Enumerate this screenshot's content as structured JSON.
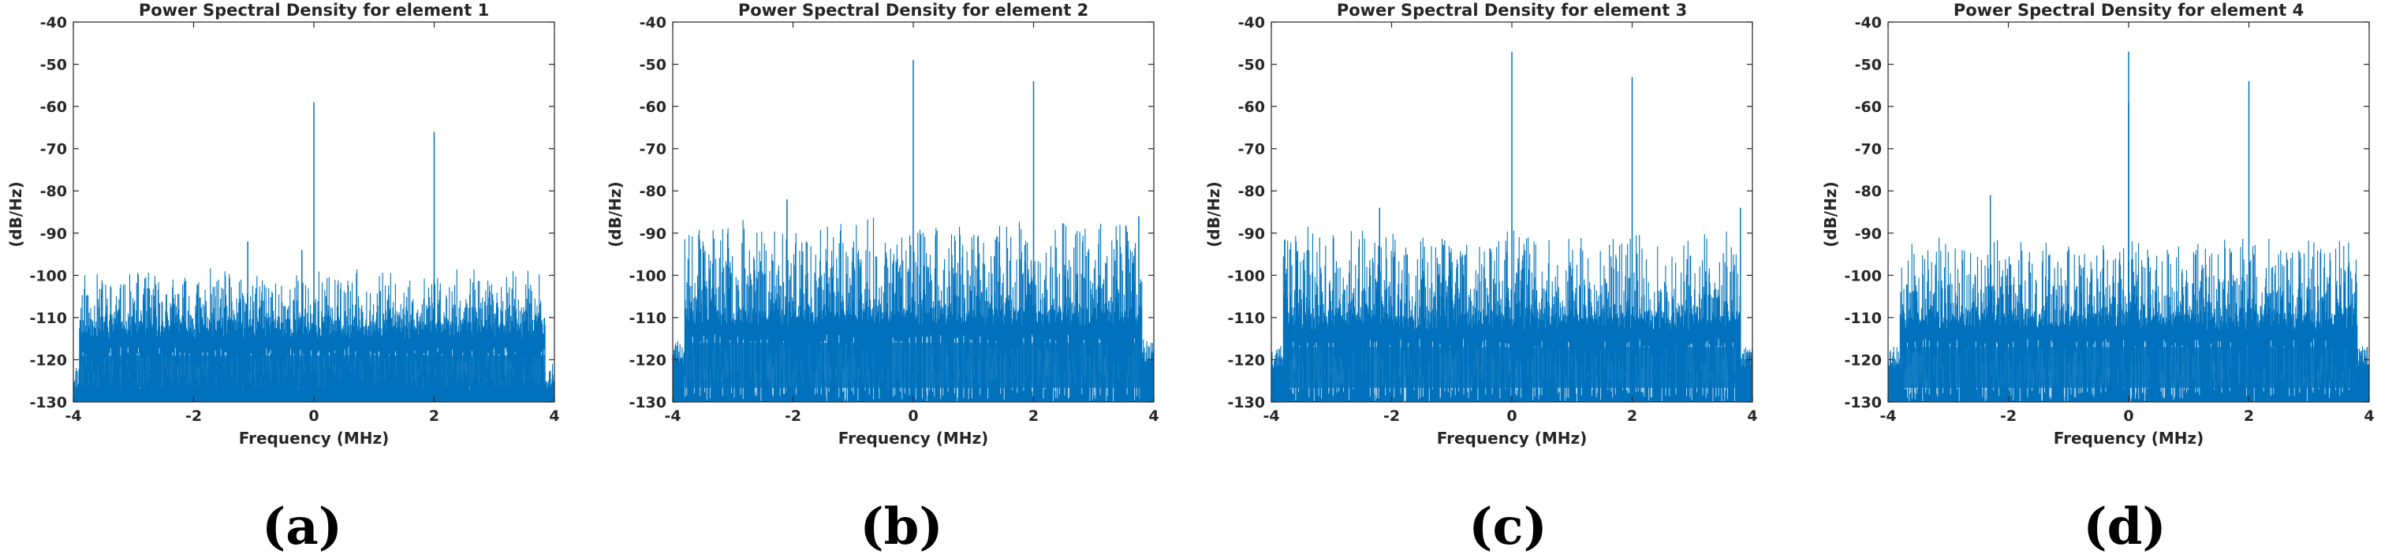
{
  "colors": {
    "trace": "#0072BD",
    "axis": "#262626"
  },
  "panels": [
    {
      "caption": "(a)"
    },
    {
      "caption": "(b)"
    },
    {
      "caption": "(c)"
    },
    {
      "caption": "(d)"
    }
  ],
  "chart_data": [
    {
      "type": "line",
      "title": "Power Spectral Density for element 1",
      "xlabel": "Frequency (MHz)",
      "ylabel": "(dB/Hz)",
      "xlim": [
        -4,
        4
      ],
      "ylim": [
        -130,
        -40
      ],
      "xticks": [
        -4,
        -2,
        0,
        2,
        4
      ],
      "yticks": [
        -40,
        -50,
        -60,
        -70,
        -80,
        -90,
        -100,
        -110,
        -120,
        -130
      ],
      "band_edges": [
        -3.9,
        3.85
      ],
      "in_band_floor": -113,
      "in_band_max": -100,
      "in_band_dips": -126,
      "out_band_top": -124,
      "spikes": [
        {
          "x": 0.0,
          "y": -59
        },
        {
          "x": 2.0,
          "y": -66
        },
        {
          "x": -1.1,
          "y": -92
        },
        {
          "x": -0.2,
          "y": -94
        }
      ],
      "seed": 11
    },
    {
      "type": "line",
      "title": "Power Spectral Density for element 2",
      "xlabel": "Frequency (MHz)",
      "ylabel": "(dB/Hz)",
      "xlim": [
        -4,
        4
      ],
      "ylim": [
        -130,
        -40
      ],
      "xticks": [
        -4,
        -2,
        0,
        2,
        4
      ],
      "yticks": [
        -40,
        -50,
        -60,
        -70,
        -80,
        -90,
        -100,
        -110,
        -120,
        -130
      ],
      "band_edges": [
        -3.8,
        3.8
      ],
      "in_band_floor": -110,
      "in_band_max": -88,
      "in_band_dips": -130,
      "out_band_top": -118,
      "spikes": [
        {
          "x": 0.0,
          "y": -49
        },
        {
          "x": 2.0,
          "y": -54
        },
        {
          "x": -2.1,
          "y": -82
        },
        {
          "x": 3.75,
          "y": -86
        }
      ],
      "seed": 23
    },
    {
      "type": "line",
      "title": "Power Spectral Density for element 3",
      "xlabel": "Frequency (MHz)",
      "ylabel": "(dB/Hz)",
      "xlim": [
        -4,
        4
      ],
      "ylim": [
        -130,
        -40
      ],
      "xticks": [
        -4,
        -2,
        0,
        2,
        4
      ],
      "yticks": [
        -40,
        -50,
        -60,
        -70,
        -80,
        -90,
        -100,
        -110,
        -120,
        -130
      ],
      "band_edges": [
        -3.8,
        3.8
      ],
      "in_band_floor": -111,
      "in_band_max": -90,
      "in_band_dips": -130,
      "out_band_top": -119,
      "spikes": [
        {
          "x": 0.0,
          "y": -47
        },
        {
          "x": 2.0,
          "y": -53
        },
        {
          "x": -2.2,
          "y": -84
        },
        {
          "x": 3.8,
          "y": -84
        }
      ],
      "seed": 37
    },
    {
      "type": "line",
      "title": "Power Spectral Density for element 4",
      "xlabel": "Frequency (MHz)",
      "ylabel": "(dB/Hz)",
      "xlim": [
        -4,
        4
      ],
      "ylim": [
        -130,
        -40
      ],
      "xticks": [
        -4,
        -2,
        0,
        2,
        4
      ],
      "yticks": [
        -40,
        -50,
        -60,
        -70,
        -80,
        -90,
        -100,
        -110,
        -120,
        -130
      ],
      "band_edges": [
        -3.8,
        3.8
      ],
      "in_band_floor": -111,
      "in_band_max": -92,
      "in_band_dips": -130,
      "out_band_top": -119,
      "spikes": [
        {
          "x": 0.0,
          "y": -47
        },
        {
          "x": 0.0,
          "y": -59
        },
        {
          "x": 2.0,
          "y": -54
        },
        {
          "x": -2.3,
          "y": -81
        }
      ],
      "seed": 53
    }
  ]
}
